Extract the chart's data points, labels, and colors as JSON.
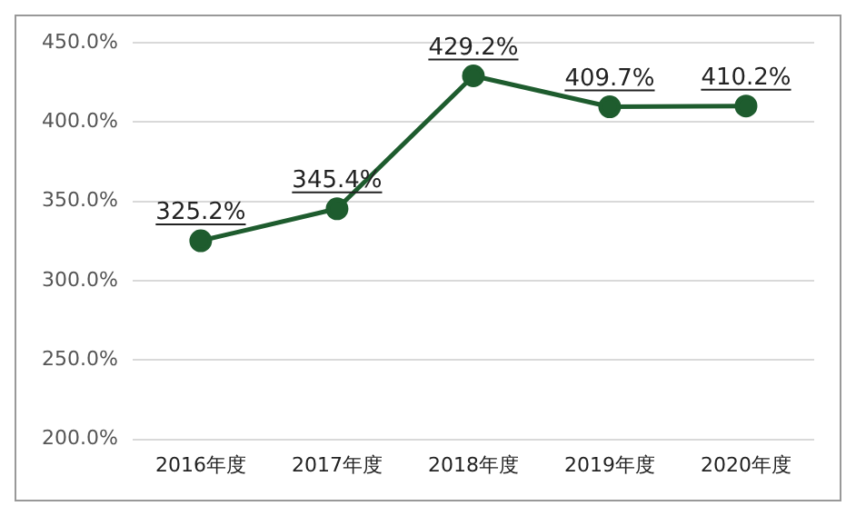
{
  "chart_data": {
    "type": "line",
    "categories": [
      "2016年度",
      "2017年度",
      "2018年度",
      "2019年度",
      "2020年度"
    ],
    "series": [
      {
        "color": "#1e5c2e",
        "values": [
          325.2,
          345.4,
          429.2,
          409.7,
          410.2
        ],
        "value_labels": [
          "325.2%",
          "345.4%",
          "429.2%",
          "409.7%",
          "410.2%"
        ]
      }
    ],
    "ylim": [
      200,
      450
    ],
    "yticks": [
      {
        "value": 200,
        "label": "200.0%"
      },
      {
        "value": 250,
        "label": "250.0%"
      },
      {
        "value": 300,
        "label": "300.0%"
      },
      {
        "value": 350,
        "label": "350.0%"
      },
      {
        "value": 400,
        "label": "400.0%"
      },
      {
        "value": 450,
        "label": "450.0%"
      }
    ],
    "grid": "y",
    "marker": "circle",
    "line_style": "solid",
    "legend": false
  }
}
